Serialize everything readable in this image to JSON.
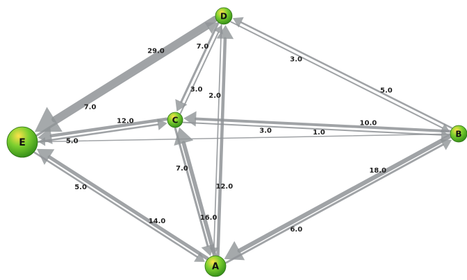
{
  "graph": {
    "colors": {
      "edge": "#8f9396",
      "edge_light": "#c8cacc",
      "node_top": "#ffe24a",
      "node_mid": "#7ccf2f",
      "node_bottom": "#2f8a17"
    },
    "nodes": [
      {
        "id": "D",
        "label": "D"
      },
      {
        "id": "C",
        "label": "C"
      },
      {
        "id": "E",
        "label": "E"
      },
      {
        "id": "B",
        "label": "B"
      },
      {
        "id": "A",
        "label": "A"
      }
    ],
    "edges": [
      {
        "from": "E",
        "to": "D",
        "weight": "7.0"
      },
      {
        "from": "D",
        "to": "E",
        "weight": "29.0"
      },
      {
        "from": "D",
        "to": "C",
        "weight": "7.0"
      },
      {
        "from": "C",
        "to": "D",
        "weight": "3.0"
      },
      {
        "from": "A",
        "to": "D",
        "weight": "12.0"
      },
      {
        "from": "D",
        "to": "A",
        "weight": "2.0"
      },
      {
        "from": "B",
        "to": "D",
        "weight": "5.0"
      },
      {
        "from": "D",
        "to": "B",
        "weight": "3.0"
      },
      {
        "from": "C",
        "to": "E",
        "weight": "12.0"
      },
      {
        "from": "E",
        "to": "C",
        "weight": "5.0"
      },
      {
        "from": "B",
        "to": "C",
        "weight": "10.0"
      },
      {
        "from": "C",
        "to": "B",
        "weight": "3.0"
      },
      {
        "from": "B",
        "to": "E",
        "weight": "1.0"
      },
      {
        "from": "C",
        "to": "A",
        "weight": "7.0"
      },
      {
        "from": "A",
        "to": "C",
        "weight": "16.0"
      },
      {
        "from": "A",
        "to": "E",
        "weight": "14.0"
      },
      {
        "from": "E",
        "to": "A",
        "weight": "5.0"
      },
      {
        "from": "B",
        "to": "A",
        "weight": "18.0"
      },
      {
        "from": "A",
        "to": "B",
        "weight": "6.0"
      }
    ]
  }
}
